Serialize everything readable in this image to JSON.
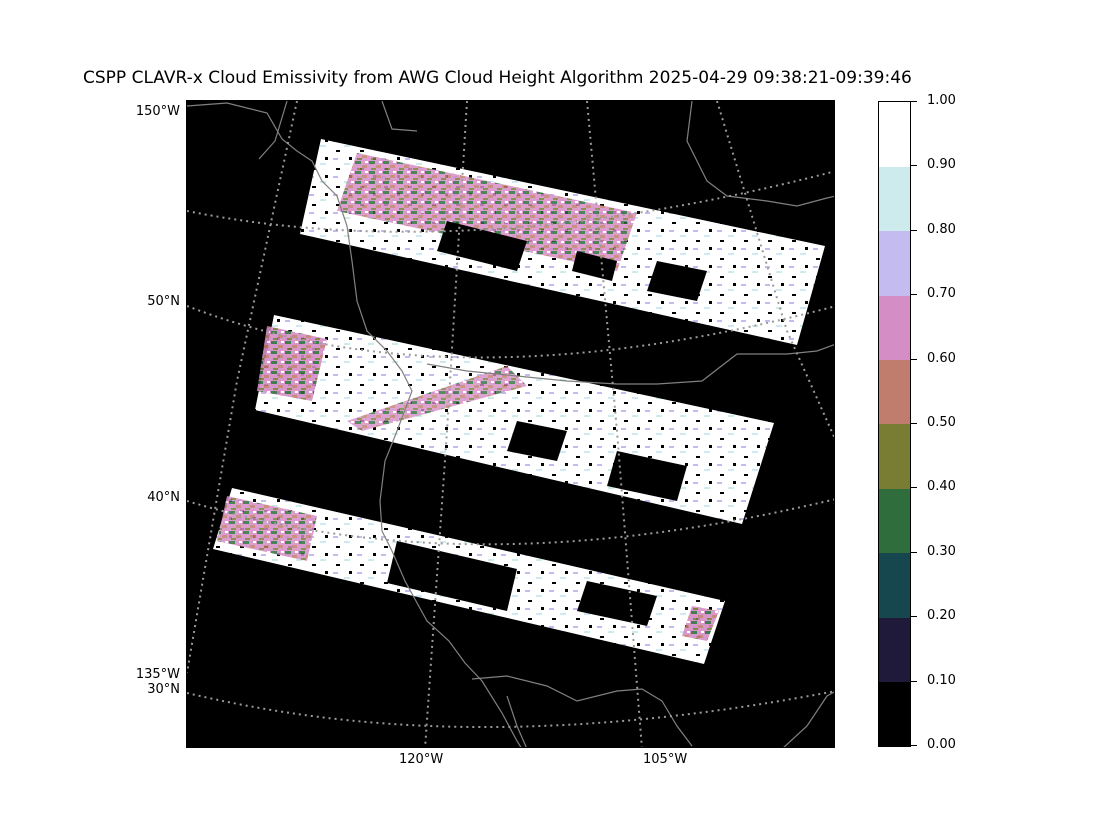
{
  "title": "CSPP CLAVR-x Cloud Emissivity from AWG Cloud Height Algorithm 2025-04-29 09:38:21-09:39:46",
  "map": {
    "background": "#000000",
    "coastline_color": "#808080",
    "graticule_color": "#9a9a9a",
    "left_labels": [
      "150°W",
      "50°N",
      "40°N",
      "135°W",
      "30°N"
    ],
    "bottom_labels": [
      "120°W",
      "105°W"
    ]
  },
  "colorbar": {
    "ticks": [
      "0.00",
      "0.10",
      "0.20",
      "0.30",
      "0.40",
      "0.50",
      "0.60",
      "0.70",
      "0.80",
      "0.90",
      "1.00"
    ],
    "colors": [
      "#000000",
      "#1f1a3a",
      "#16474f",
      "#2f6e3c",
      "#797d34",
      "#c07c6d",
      "#d58dc6",
      "#c4bcf0",
      "#cdeaec",
      "#ffffff"
    ]
  }
}
